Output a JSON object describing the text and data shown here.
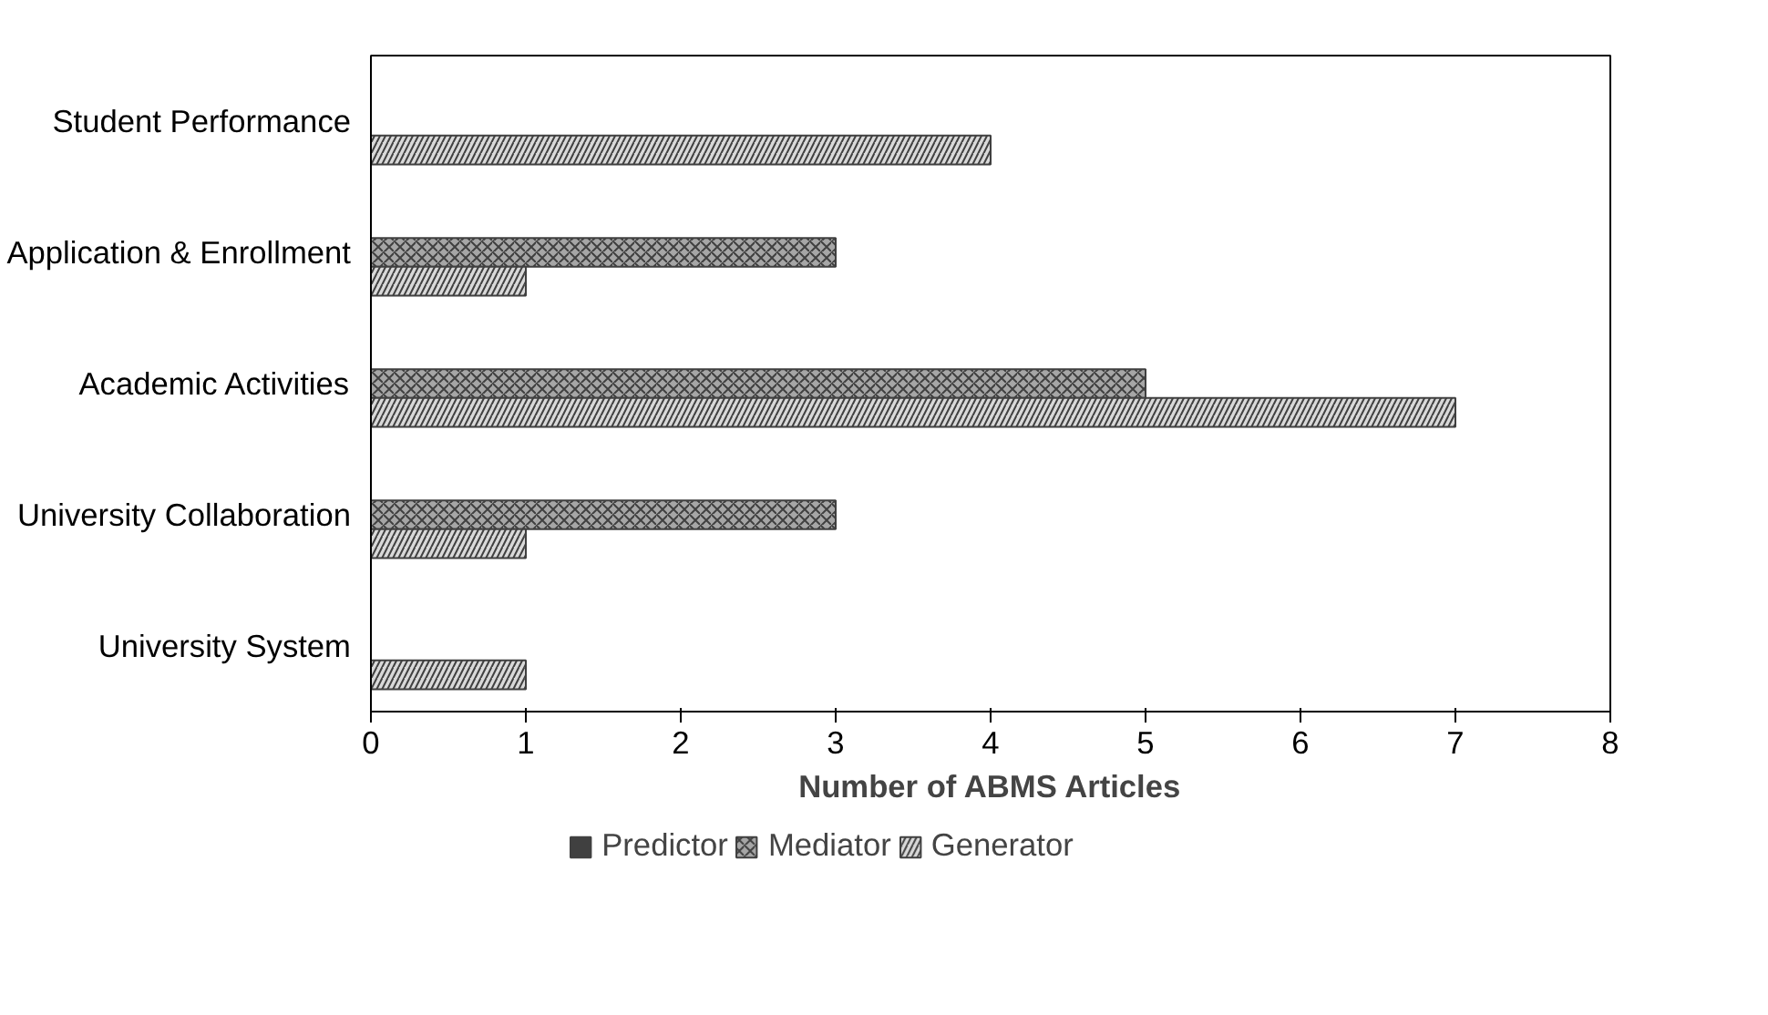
{
  "chart_data": {
    "type": "bar",
    "orientation": "horizontal",
    "xlabel": "Number of ABMS Articles",
    "categories": [
      "Student Performance",
      "Application & Enrollment",
      "Academic Activities",
      "University Collaboration",
      "University System"
    ],
    "series": [
      {
        "name": "Predictor",
        "color": "#404040",
        "values": [
          null,
          null,
          null,
          null,
          null
        ]
      },
      {
        "name": "Mediator",
        "color": "#a6a6a6",
        "values": [
          null,
          3,
          5,
          3,
          null
        ]
      },
      {
        "name": "Generator",
        "color": "#d9d9d9",
        "values": [
          4,
          1,
          7,
          1,
          1
        ]
      }
    ],
    "xlim": [
      0,
      8
    ],
    "xticks": [
      0,
      1,
      2,
      3,
      4,
      5,
      6,
      7,
      8
    ],
    "grid": false,
    "legend": "bottom"
  }
}
